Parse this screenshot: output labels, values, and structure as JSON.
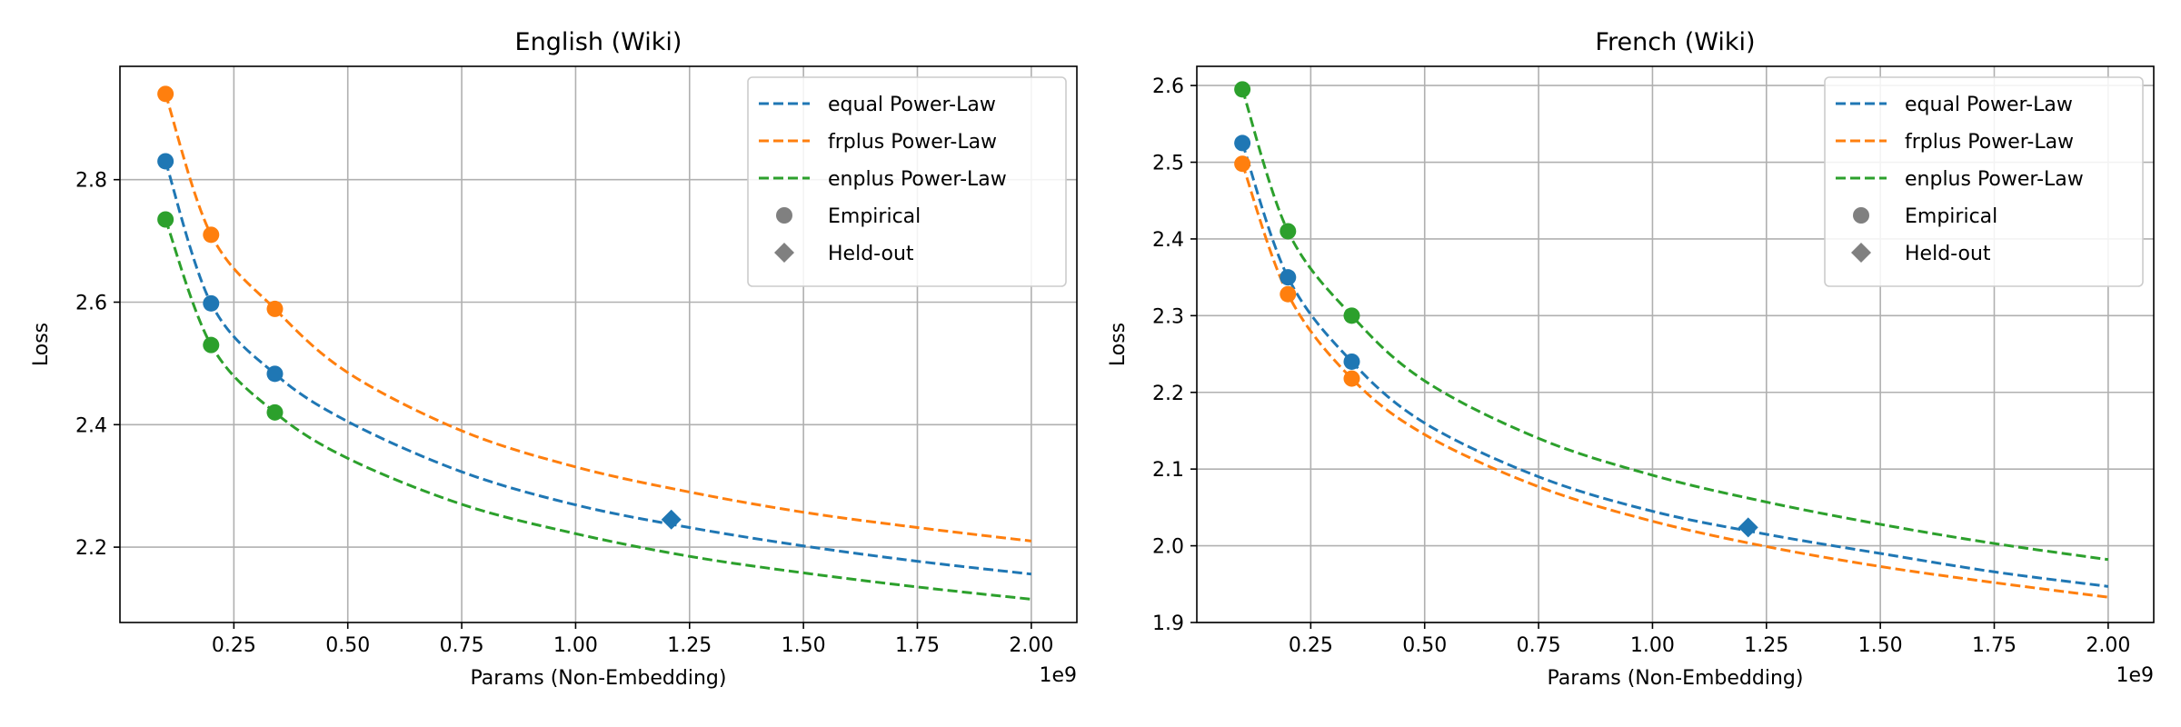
{
  "chart_data": [
    {
      "type": "line",
      "title": "English (Wiki)",
      "xlabel": "Params (Non-Embedding)",
      "ylabel": "Loss",
      "x_offset_label": "1e9",
      "xlim": [
        0.0,
        2.1
      ],
      "ylim": [
        2.077,
        2.985
      ],
      "x_ticks": [
        0.25,
        0.5,
        0.75,
        1.0,
        1.25,
        1.5,
        1.75,
        2.0
      ],
      "x_tick_labels": [
        "0.25",
        "0.50",
        "0.75",
        "1.00",
        "1.25",
        "1.50",
        "1.75",
        "2.00"
      ],
      "y_ticks": [
        2.2,
        2.4,
        2.6,
        2.8
      ],
      "y_tick_labels": [
        "2.2",
        "2.4",
        "2.6",
        "2.8"
      ],
      "grid": true,
      "legend_position": "top-right",
      "legend": [
        {
          "label": "equal Power-Law",
          "kind": "line",
          "color": "#1f77b4"
        },
        {
          "label": "frplus Power-Law",
          "kind": "line",
          "color": "#ff7f0e"
        },
        {
          "label": "enplus Power-Law",
          "kind": "line",
          "color": "#2ca02c"
        },
        {
          "label": "Empirical",
          "kind": "circle",
          "color": "#808080"
        },
        {
          "label": "Held-out",
          "kind": "diamond",
          "color": "#808080"
        }
      ],
      "series": [
        {
          "key": "equal",
          "color": "#1f77b4",
          "curve_x": [
            0.1,
            0.2,
            0.34,
            0.5,
            0.75,
            1.0,
            1.25,
            1.5,
            1.75,
            2.0
          ],
          "curve_y": [
            2.83,
            2.598,
            2.483,
            2.405,
            2.323,
            2.269,
            2.232,
            2.202,
            2.177,
            2.156
          ],
          "empirical_x": [
            0.1,
            0.2,
            0.34
          ],
          "empirical_y": [
            2.83,
            2.598,
            2.483
          ],
          "heldout_x": [
            1.21
          ],
          "heldout_y": [
            2.245
          ]
        },
        {
          "key": "frplus",
          "color": "#ff7f0e",
          "curve_x": [
            0.1,
            0.2,
            0.34,
            0.5,
            0.75,
            1.0,
            1.25,
            1.5,
            1.75,
            2.0
          ],
          "curve_y": [
            2.94,
            2.71,
            2.589,
            2.485,
            2.39,
            2.331,
            2.29,
            2.257,
            2.232,
            2.21
          ],
          "empirical_x": [
            0.1,
            0.2,
            0.34
          ],
          "empirical_y": [
            2.94,
            2.71,
            2.589
          ]
        },
        {
          "key": "enplus",
          "color": "#2ca02c",
          "curve_x": [
            0.1,
            0.2,
            0.34,
            0.5,
            0.75,
            1.0,
            1.25,
            1.5,
            1.75,
            2.0
          ],
          "curve_y": [
            2.735,
            2.53,
            2.42,
            2.345,
            2.27,
            2.222,
            2.185,
            2.158,
            2.135,
            2.115
          ],
          "empirical_x": [
            0.1,
            0.2,
            0.34
          ],
          "empirical_y": [
            2.735,
            2.53,
            2.42
          ]
        }
      ]
    },
    {
      "type": "line",
      "title": "French (Wiki)",
      "xlabel": "Params (Non-Embedding)",
      "ylabel": "Loss",
      "x_offset_label": "1e9",
      "xlim": [
        0.0,
        2.1
      ],
      "ylim": [
        1.9,
        2.625
      ],
      "x_ticks": [
        0.25,
        0.5,
        0.75,
        1.0,
        1.25,
        1.5,
        1.75,
        2.0
      ],
      "x_tick_labels": [
        "0.25",
        "0.50",
        "0.75",
        "1.00",
        "1.25",
        "1.50",
        "1.75",
        "2.00"
      ],
      "y_ticks": [
        1.9,
        2.0,
        2.1,
        2.2,
        2.3,
        2.4,
        2.5,
        2.6
      ],
      "y_tick_labels": [
        "1.9",
        "2.0",
        "2.1",
        "2.2",
        "2.3",
        "2.4",
        "2.5",
        "2.6"
      ],
      "grid": true,
      "legend_position": "top-right",
      "legend": [
        {
          "label": "equal Power-Law",
          "kind": "line",
          "color": "#1f77b4"
        },
        {
          "label": "frplus Power-Law",
          "kind": "line",
          "color": "#ff7f0e"
        },
        {
          "label": "enplus Power-Law",
          "kind": "line",
          "color": "#2ca02c"
        },
        {
          "label": "Empirical",
          "kind": "circle",
          "color": "#808080"
        },
        {
          "label": "Held-out",
          "kind": "diamond",
          "color": "#808080"
        }
      ],
      "series": [
        {
          "key": "equal",
          "color": "#1f77b4",
          "curve_x": [
            0.1,
            0.2,
            0.34,
            0.5,
            0.75,
            1.0,
            1.25,
            1.5,
            1.75,
            2.0
          ],
          "curve_y": [
            2.525,
            2.35,
            2.24,
            2.16,
            2.09,
            2.045,
            2.015,
            1.99,
            1.966,
            1.947
          ],
          "empirical_x": [
            0.1,
            0.2,
            0.34
          ],
          "empirical_y": [
            2.525,
            2.35,
            2.24
          ],
          "heldout_x": [
            1.21
          ],
          "heldout_y": [
            2.024
          ]
        },
        {
          "key": "frplus",
          "color": "#ff7f0e",
          "curve_x": [
            0.1,
            0.2,
            0.34,
            0.5,
            0.75,
            1.0,
            1.25,
            1.5,
            1.75,
            2.0
          ],
          "curve_y": [
            2.498,
            2.328,
            2.218,
            2.145,
            2.077,
            2.032,
            1.999,
            1.973,
            1.952,
            1.933
          ],
          "empirical_x": [
            0.1,
            0.2,
            0.34
          ],
          "empirical_y": [
            2.498,
            2.328,
            2.218
          ]
        },
        {
          "key": "enplus",
          "color": "#2ca02c",
          "curve_x": [
            0.1,
            0.2,
            0.34,
            0.5,
            0.75,
            1.0,
            1.25,
            1.5,
            1.75,
            2.0
          ],
          "curve_y": [
            2.595,
            2.41,
            2.3,
            2.215,
            2.14,
            2.092,
            2.057,
            2.028,
            2.003,
            1.982
          ],
          "empirical_x": [
            0.1,
            0.2,
            0.34
          ],
          "empirical_y": [
            2.595,
            2.41,
            2.3
          ]
        }
      ]
    }
  ]
}
